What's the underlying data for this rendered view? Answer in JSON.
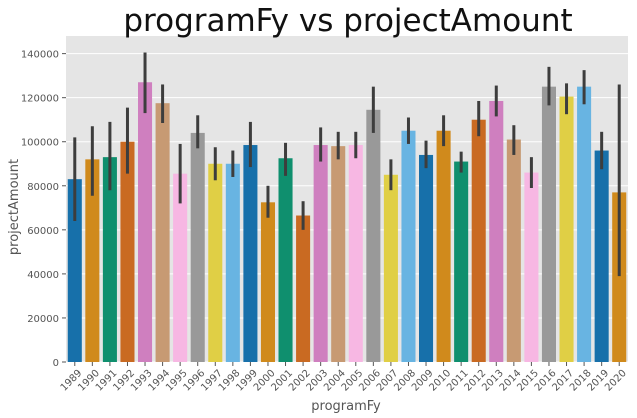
{
  "chart_data": {
    "type": "bar",
    "title": "programFy vs projectAmount",
    "xlabel": "programFy",
    "ylabel": "projectAmount",
    "ylim": [
      0,
      148000
    ],
    "yticks": [
      0,
      20000,
      40000,
      60000,
      80000,
      100000,
      120000,
      140000
    ],
    "grid": true,
    "background": "#e5e5e5",
    "categories": [
      "1989",
      "1990",
      "1991",
      "1992",
      "1993",
      "1994",
      "1995",
      "1996",
      "1997",
      "1998",
      "1999",
      "2000",
      "2001",
      "2002",
      "2003",
      "2004",
      "2005",
      "2006",
      "2007",
      "2008",
      "2009",
      "2010",
      "2011",
      "2012",
      "2013",
      "2014",
      "2015",
      "2016",
      "2017",
      "2018",
      "2019",
      "2020"
    ],
    "values": [
      83000,
      92000,
      93000,
      100000,
      127000,
      117500,
      85500,
      104000,
      90000,
      90000,
      98500,
      72500,
      92500,
      66500,
      98500,
      98000,
      98500,
      114500,
      85000,
      105000,
      94000,
      105000,
      91000,
      110000,
      118500,
      101000,
      86000,
      125000,
      120500,
      125000,
      96000,
      77000
    ],
    "ci_low": [
      64000,
      75500,
      78000,
      85500,
      113000,
      108500,
      72000,
      97000,
      82500,
      84000,
      88500,
      65500,
      84500,
      60000,
      91000,
      92000,
      92500,
      104000,
      78000,
      99000,
      88000,
      98000,
      86000,
      102500,
      111500,
      94000,
      79000,
      116500,
      112500,
      117000,
      87500,
      39000
    ],
    "ci_high": [
      102000,
      107000,
      109000,
      115500,
      140500,
      126000,
      99000,
      112000,
      97500,
      96000,
      109000,
      80000,
      99500,
      73000,
      106500,
      104500,
      104500,
      125000,
      92000,
      111000,
      100500,
      112000,
      95500,
      118500,
      125500,
      107500,
      93000,
      134000,
      126500,
      132500,
      104500,
      126000
    ],
    "colors": [
      "#1770aa",
      "#d08a1c",
      "#0f8f6e",
      "#c96a22",
      "#cf7fbf",
      "#c79a73",
      "#f7b7e3",
      "#999999",
      "#e0cf45",
      "#68b4e2",
      "#1770aa",
      "#d08a1c",
      "#0f8f6e",
      "#c96a22",
      "#cf7fbf",
      "#c79a73",
      "#f7b7e3",
      "#999999",
      "#e0cf45",
      "#68b4e2",
      "#1770aa",
      "#d08a1c",
      "#0f8f6e",
      "#c96a22",
      "#cf7fbf",
      "#c79a73",
      "#f7b7e3",
      "#999999",
      "#e0cf45",
      "#68b4e2",
      "#1770aa",
      "#d08a1c"
    ],
    "errorbar_color": "#3d3d3d"
  }
}
